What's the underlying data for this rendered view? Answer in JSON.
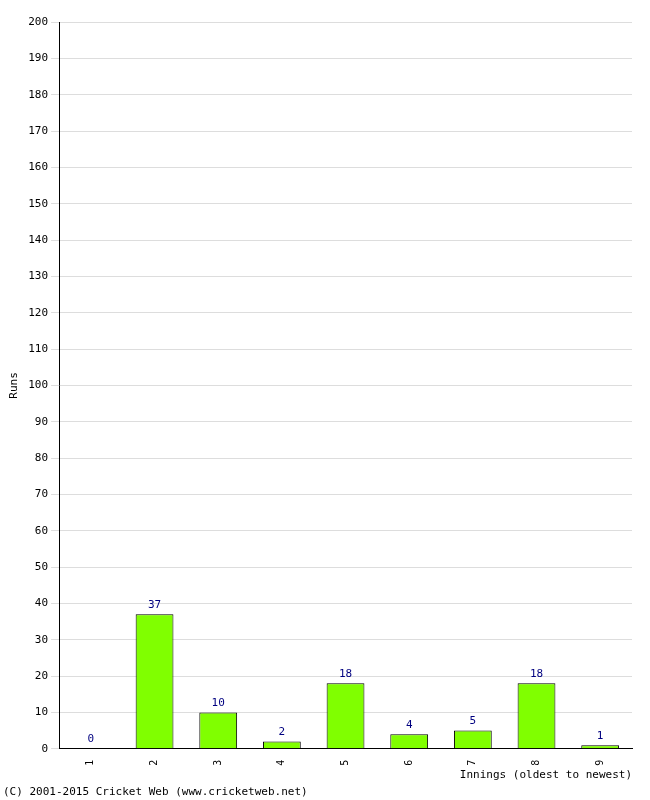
{
  "chart_data": {
    "type": "bar",
    "categories": [
      "1",
      "2",
      "3",
      "4",
      "5",
      "6",
      "7",
      "8",
      "9"
    ],
    "values": [
      0,
      37,
      10,
      2,
      18,
      4,
      5,
      18,
      1
    ],
    "color": "#80ff00",
    "x_label": "Innings (oldest to newest)",
    "y_label": "Runs",
    "annotations": [
      "(C) 2001-2015 Cricket Web (www.cricketweb.net)"
    ],
    "ylim": [
      0,
      200
    ],
    "yticks": [
      0,
      10,
      20,
      30,
      40,
      50,
      60,
      70,
      80,
      90,
      100,
      110,
      120,
      130,
      140,
      150,
      160,
      170,
      180,
      190,
      200
    ],
    "grid": true,
    "data_labels": true
  }
}
